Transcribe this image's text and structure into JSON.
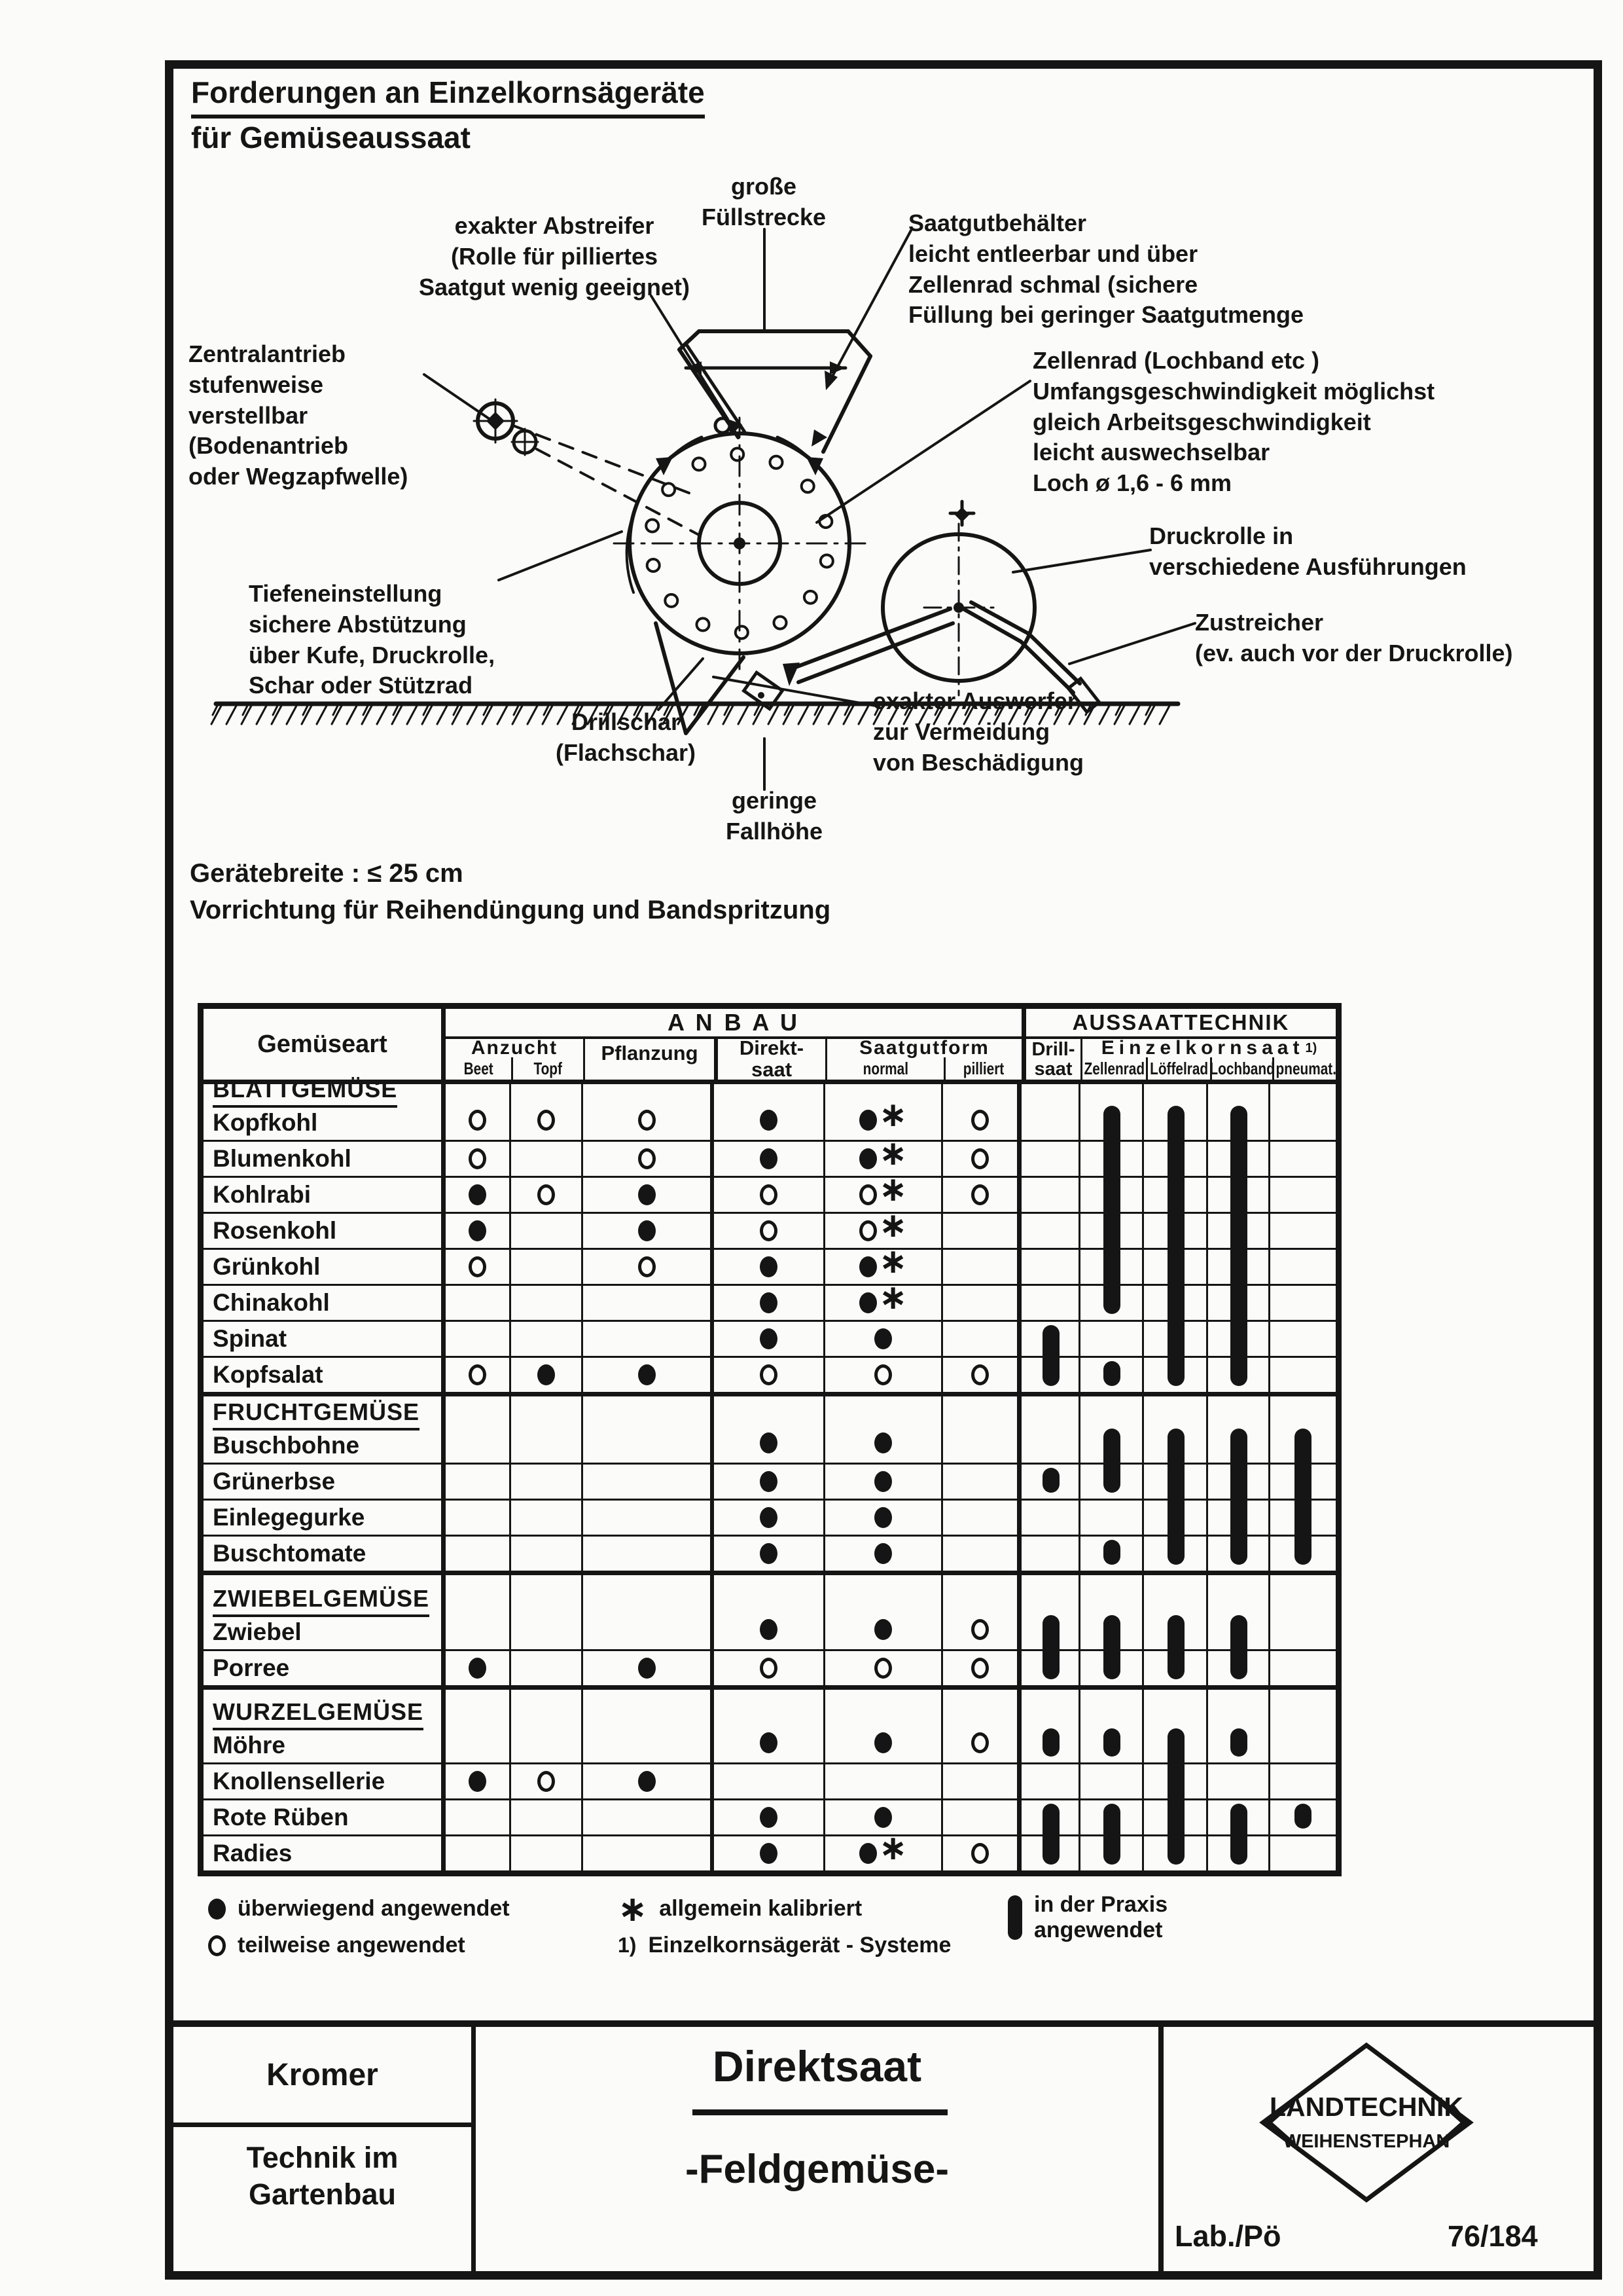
{
  "colors": {
    "ink": "#151515",
    "paper": "#fbfbf9"
  },
  "title": {
    "line1": "Forderungen an Einzelkornsägeräte",
    "line2": "für Gemüseaussaat"
  },
  "diagram_labels": {
    "abstreifer": "exakter Abstreifer\n(Rolle für pilliertes\nSaatgut wenig geeignet)",
    "fuellstrecke": "große\nFüllstrecke",
    "saatgutbehaelter": "Saatgutbehälter\nleicht entleerbar und über\nZellenrad schmal (sichere\nFüllung bei geringer Saatgutmenge",
    "zentralantrieb": "Zentralantrieb\nstufenweise\nverstellbar\n(Bodenantrieb\noder Wegzapfwelle)",
    "zellenrad": "Zellenrad (Lochband etc )\nUmfangsgeschwindigkeit möglichst\ngleich Arbeitsgeschwindigkeit\nleicht auswechselbar\nLoch ø 1,6 - 6 mm",
    "druckrolle": "Druckrolle in\nverschiedene Ausführungen",
    "zustreicher": "Zustreicher\n(ev. auch vor der Druckrolle)",
    "auswerfer": "exakter Auswerfer\nzur Vermeidung\nvon Beschädigung",
    "tiefeneinstellung": "Tiefeneinstellung\nsichere Abstützung\nüber Kufe, Druckrolle,\nSchar oder Stützrad",
    "drillschar": "Drillschar\n(Flachschar)",
    "fallhoehe": "geringe\nFallhöhe"
  },
  "specs": {
    "line1": "Gerätebreite : ≤ 25 cm",
    "line2": "Vorrichtung für Reihendüngung und Bandspritzung"
  },
  "table": {
    "header": {
      "gemueseart": "Gemüseart",
      "anbau": "A N B A U",
      "aussaattechnik": "AUSSAATTECHNIK",
      "anzucht": "Anzucht",
      "beet": "Beet",
      "topf": "Topf",
      "pflanzung": "Pflanzung",
      "direktsaat": "Direkt-\nsaat",
      "saatgutform": "Saatgutform",
      "normal": "normal",
      "pilliert": "pilliert",
      "drillsaat": "Drill-\nsaat",
      "einzelkornsaat": "Einzelkornsaat",
      "einzelkornsaat_note": "1)",
      "zellenrad": "Zellenrad",
      "loeffelrad": "Löffelrad",
      "lochband": "Lochband",
      "pneumat": "pneumat."
    },
    "anbau_columns": [
      "Beet",
      "Topf",
      "Pflanzung",
      "Direktsaat",
      "normal",
      "pilliert"
    ],
    "sections": [
      {
        "name": "BLATTGEMÜSE",
        "rows": [
          {
            "name": "Kopfkohl",
            "anbau": [
              "o",
              "o",
              "o",
              "f",
              "f*",
              "o"
            ]
          },
          {
            "name": "Blumenkohl",
            "anbau": [
              "o",
              "",
              "o",
              "f",
              "f*",
              "o"
            ]
          },
          {
            "name": "Kohlrabi",
            "anbau": [
              "f",
              "o",
              "f",
              "o",
              "o*",
              "o"
            ]
          },
          {
            "name": "Rosenkohl",
            "anbau": [
              "f",
              "",
              "f",
              "o",
              "o*",
              ""
            ]
          },
          {
            "name": "Grünkohl",
            "anbau": [
              "o",
              "",
              "o",
              "f",
              "f*",
              ""
            ]
          },
          {
            "name": "Chinakohl",
            "anbau": [
              "",
              "",
              "",
              "f",
              "f*",
              ""
            ]
          },
          {
            "name": "Spinat",
            "anbau": [
              "",
              "",
              "",
              "f",
              "f",
              ""
            ]
          },
          {
            "name": "Kopfsalat",
            "anbau": [
              "o",
              "f",
              "f",
              "o",
              "o",
              "o"
            ]
          }
        ]
      },
      {
        "name": "FRUCHTGEMÜSE",
        "rows": [
          {
            "name": "Buschbohne",
            "anbau": [
              "",
              "",
              "",
              "f",
              "f",
              ""
            ]
          },
          {
            "name": "Grünerbse",
            "anbau": [
              "",
              "",
              "",
              "f",
              "f",
              ""
            ]
          },
          {
            "name": "Einlegegurke",
            "anbau": [
              "",
              "",
              "",
              "f",
              "f",
              ""
            ]
          },
          {
            "name": "Buschtomate",
            "anbau": [
              "",
              "",
              "",
              "f",
              "f",
              ""
            ]
          }
        ]
      },
      {
        "name": "ZWIEBELGEMÜSE",
        "rows": [
          {
            "name": "Zwiebel",
            "anbau": [
              "",
              "",
              "",
              "f",
              "f",
              "o"
            ]
          },
          {
            "name": "Porree",
            "anbau": [
              "f",
              "",
              "f",
              "o",
              "o",
              "o"
            ]
          }
        ]
      },
      {
        "name": "WURZELGEMÜSE",
        "rows": [
          {
            "name": "Möhre",
            "anbau": [
              "",
              "",
              "",
              "f",
              "f",
              "o"
            ]
          },
          {
            "name": "Knollensellerie",
            "anbau": [
              "f",
              "o",
              "f",
              "",
              "",
              ""
            ]
          },
          {
            "name": "Rote Rüben",
            "anbau": [
              "",
              "",
              "",
              "f",
              "f",
              ""
            ]
          },
          {
            "name": "Radies",
            "anbau": [
              "",
              "",
              "",
              "f",
              "f*",
              "o"
            ]
          }
        ]
      }
    ],
    "technik_bars": [
      {
        "col": "drillsaat",
        "from": "Spinat",
        "to": "Kopfsalat"
      },
      {
        "col": "drillsaat",
        "from": "Grünerbse",
        "to": "Grünerbse"
      },
      {
        "col": "drillsaat",
        "from": "Zwiebel",
        "to": "Porree"
      },
      {
        "col": "drillsaat",
        "from": "Möhre",
        "to": "Möhre"
      },
      {
        "col": "drillsaat",
        "from": "Rote Rüben",
        "to": "Radies"
      },
      {
        "col": "zellenrad",
        "from": "Kopfkohl",
        "to": "Chinakohl"
      },
      {
        "col": "zellenrad",
        "from": "Kopfsalat",
        "to": "Kopfsalat"
      },
      {
        "col": "zellenrad",
        "from": "Buschbohne",
        "to": "Grünerbse"
      },
      {
        "col": "zellenrad",
        "from": "Buschtomate",
        "to": "Buschtomate"
      },
      {
        "col": "zellenrad",
        "from": "Zwiebel",
        "to": "Porree"
      },
      {
        "col": "zellenrad",
        "from": "Möhre",
        "to": "Möhre"
      },
      {
        "col": "zellenrad",
        "from": "Rote Rüben",
        "to": "Radies"
      },
      {
        "col": "loeffelrad",
        "from": "Kopfkohl",
        "to": "Kopfsalat"
      },
      {
        "col": "loeffelrad",
        "from": "Buschbohne",
        "to": "Buschtomate"
      },
      {
        "col": "loeffelrad",
        "from": "Zwiebel",
        "to": "Porree"
      },
      {
        "col": "loeffelrad",
        "from": "Möhre",
        "to": "Radies"
      },
      {
        "col": "lochband",
        "from": "Kopfkohl",
        "to": "Kopfsalat"
      },
      {
        "col": "lochband",
        "from": "Buschbohne",
        "to": "Buschtomate"
      },
      {
        "col": "lochband",
        "from": "Zwiebel",
        "to": "Porree"
      },
      {
        "col": "lochband",
        "from": "Möhre",
        "to": "Möhre"
      },
      {
        "col": "lochband",
        "from": "Rote Rüben",
        "to": "Radies"
      },
      {
        "col": "pneumat",
        "from": "Buschbohne",
        "to": "Buschtomate"
      },
      {
        "col": "pneumat",
        "from": "Rote Rüben",
        "to": "Rote Rüben"
      }
    ]
  },
  "legend": {
    "filled": "überwiegend angewendet",
    "open": "teilweise angewendet",
    "asterisk_label": "allgemein kalibriert",
    "note_num": "1)",
    "note_text": "Einzelkornsägerät - Systeme",
    "bar_label": "in der Praxis\nangewendet"
  },
  "footer": {
    "author": "Kromer",
    "dept": "Technik im\nGartenbau",
    "main_title": "Direktsaat",
    "subtitle": "-Feldgemüse-",
    "logo_top": "LANDTECHNIK",
    "logo_bottom": "WEIHENSTEPHAN",
    "lab": "Lab./Pö",
    "sheet": "76/184"
  }
}
